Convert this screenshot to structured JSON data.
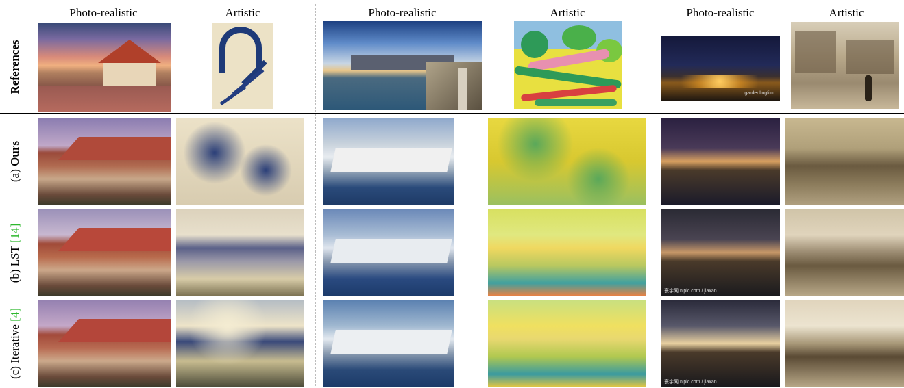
{
  "headers": {
    "col1": "Photo-realistic",
    "col2": "Artistic",
    "col3": "Photo-realistic",
    "col4": "Artistic",
    "col5": "Photo-realistic",
    "col6": "Artistic"
  },
  "rows": {
    "references": "References",
    "ours_prefix": "(a) ",
    "ours_name": "Ours",
    "lst_prefix": "(b) LST ",
    "lst_cite": "[14]",
    "iter_prefix": "(c) Iterative ",
    "iter_cite": "[4]"
  },
  "watermarks": {
    "night_ref": "gardenlingfilm",
    "night_row": "寰宇网 nipic.com / jiaxan"
  },
  "colors": {
    "cite": "#2eb82e",
    "divider": "#000000",
    "dashed": "#bdbdbd"
  }
}
